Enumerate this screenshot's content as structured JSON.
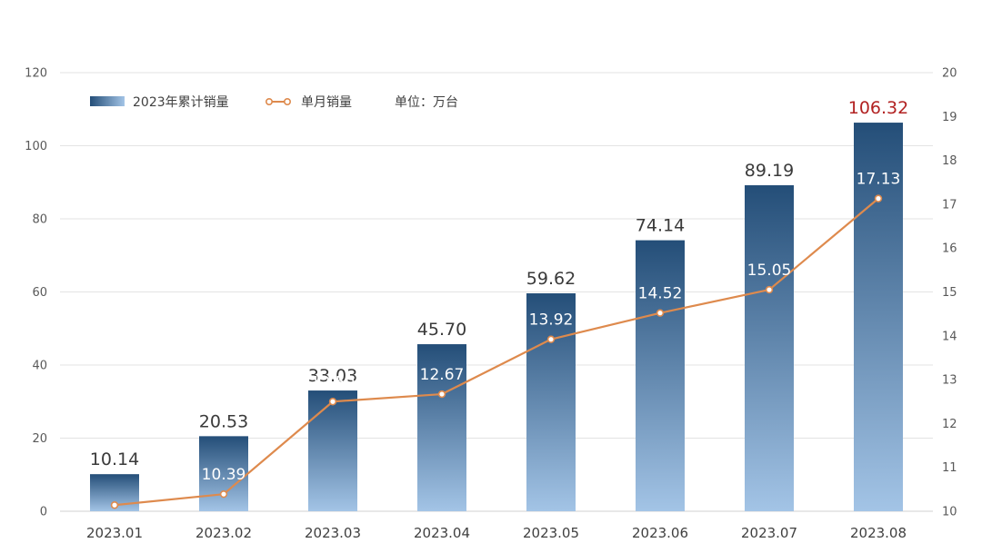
{
  "chart_data": {
    "type": "bar",
    "categories": [
      "2023.01",
      "2023.02",
      "2023.03",
      "2023.04",
      "2023.05",
      "2023.06",
      "2023.07",
      "2023.08"
    ],
    "series": [
      {
        "name": "2023年累计销量",
        "type": "bar",
        "axis": "left",
        "values": [
          10.14,
          20.53,
          33.03,
          45.7,
          59.62,
          74.14,
          89.19,
          106.32
        ],
        "labels": [
          "10.14",
          "20.53",
          "33.03",
          "45.70",
          "59.62",
          "74.14",
          "89.19",
          "106.32"
        ]
      },
      {
        "name": "单月销量",
        "type": "line",
        "axis": "right",
        "values": [
          10.14,
          10.39,
          12.5,
          12.67,
          13.92,
          14.52,
          15.05,
          17.13
        ],
        "labels": [
          "",
          "10.39",
          "12.50",
          "12.67",
          "13.92",
          "14.52",
          "15.05",
          "17.13"
        ]
      }
    ],
    "unit_note": "单位：万台",
    "y_left": {
      "min": 0,
      "max": 120,
      "ticks": [
        "0",
        "20",
        "40",
        "60",
        "80",
        "100",
        "120"
      ]
    },
    "y_right": {
      "min": 10,
      "max": 20,
      "ticks": [
        "10",
        "11",
        "12",
        "13",
        "14",
        "15",
        "16",
        "17",
        "18",
        "19",
        "20"
      ]
    },
    "grid": true,
    "legend_position": "top-left",
    "highlight_last_label": true,
    "colors": {
      "bar_top": "#244e78",
      "bar_bottom": "#a3c4e6",
      "line": "#de8a4d",
      "point_fill": "#ffffff",
      "highlight_label": "#b22222"
    }
  }
}
